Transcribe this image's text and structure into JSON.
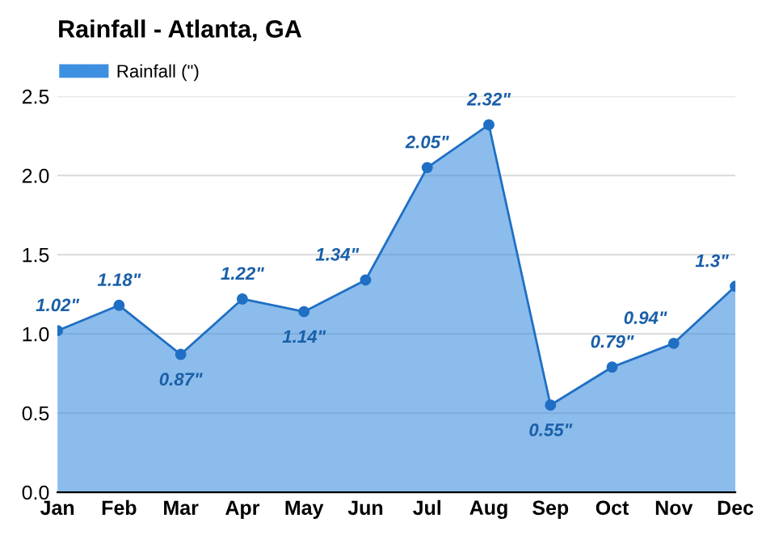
{
  "chart_data": {
    "type": "area",
    "title": "Rainfall - Atlanta, GA",
    "categories": [
      "Jan",
      "Feb",
      "Mar",
      "Apr",
      "May",
      "Jun",
      "Jul",
      "Aug",
      "Sep",
      "Oct",
      "Nov",
      "Dec"
    ],
    "series": [
      {
        "name": "Rainfall (\")",
        "color": "#3d8fe0",
        "values": [
          1.02,
          1.18,
          0.87,
          1.22,
          1.14,
          1.34,
          2.05,
          2.32,
          0.55,
          0.79,
          0.94,
          1.3
        ],
        "value_labels": [
          "1.02\"",
          "1.18\"",
          "0.87\"",
          "1.22\"",
          "1.14\"",
          "1.34\"",
          "2.05\"",
          "2.32\"",
          "0.55\"",
          "0.79\"",
          "0.94\"",
          "1.3\""
        ]
      }
    ],
    "ylim": [
      0,
      2.5
    ],
    "yticks": [
      {
        "value": 0,
        "label": "0.0"
      },
      {
        "value": 0.5,
        "label": "0.5"
      },
      {
        "value": 1,
        "label": "1.0"
      },
      {
        "value": 1.5,
        "label": "1.5"
      },
      {
        "value": 2,
        "label": "2.0"
      },
      {
        "value": 2.5,
        "label": "2.5"
      }
    ],
    "grid": "y",
    "legend": "top left",
    "marker": "circle",
    "line_style": "solid"
  }
}
